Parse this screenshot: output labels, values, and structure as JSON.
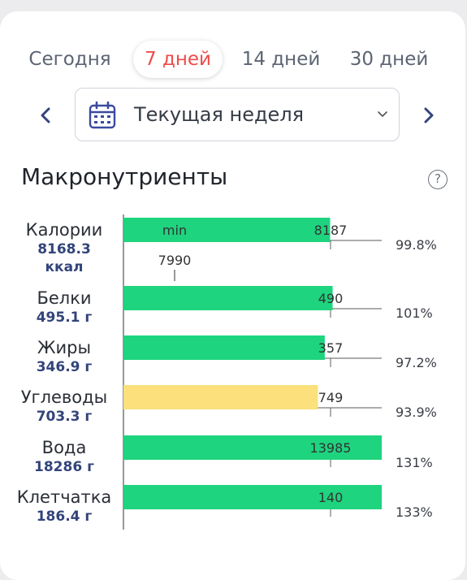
{
  "tabs": [
    {
      "label": "Сегодня",
      "active": false
    },
    {
      "label": "7 дней",
      "active": true
    },
    {
      "label": "14 дней",
      "active": false
    },
    {
      "label": "30 дней",
      "active": false
    }
  ],
  "period": {
    "label": "Текущая неделя"
  },
  "icons": {
    "prev": "chevron-left-icon",
    "next": "chevron-right-icon",
    "calendar": "calendar-icon",
    "dropdown": "chevron-down-icon",
    "help": "help-icon"
  },
  "colors": {
    "accent": "#ee4b4b",
    "nav": "#33447a",
    "bar_ok": "#1ed47e",
    "bar_low": "#fbe07b"
  },
  "section": {
    "title": "Макронутриенты",
    "help_glyph": "?"
  },
  "chart_data": {
    "type": "bar",
    "orientation": "horizontal",
    "categories": [
      "Калории",
      "Белки",
      "Жиры",
      "Углеводы",
      "Вода",
      "Клетчатка"
    ],
    "series": [
      {
        "values": [
          8168.3,
          495.1,
          346.9,
          703.3,
          18286,
          186.4
        ],
        "value_labels": [
          "8168.3",
          "495.1 г",
          "346.9 г",
          "703.3 г",
          "18286 г",
          "186.4 г"
        ],
        "units": [
          "ккал",
          "г",
          "г",
          "г",
          "г",
          "г"
        ]
      }
    ],
    "targets": [
      "8187",
      "490",
      "357",
      "749",
      "13985",
      "140"
    ],
    "percent": [
      "99.8%",
      "101%",
      "97.2%",
      "93.9%",
      "131%",
      "133%"
    ],
    "fill": [
      0.998,
      1.01,
      0.972,
      0.939,
      1.31,
      1.33
    ],
    "status": [
      "ok",
      "ok",
      "ok",
      "low",
      "ok",
      "ok"
    ],
    "min_marker": {
      "label": "min",
      "value": "7990"
    }
  }
}
